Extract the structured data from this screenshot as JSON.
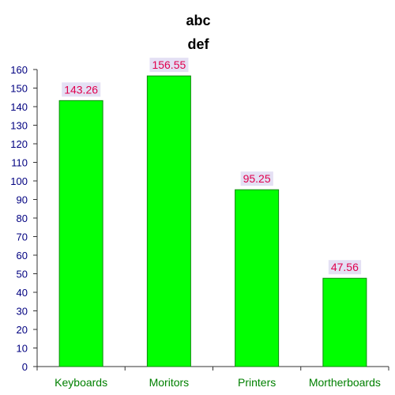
{
  "chart_data": {
    "type": "bar",
    "title": "abc",
    "subtitle": "def",
    "xlabel": "",
    "ylabel": "",
    "categories": [
      "Keyboards",
      "Moritors",
      "Printers",
      "Mortherboards"
    ],
    "values": [
      143.26,
      156.55,
      95.25,
      47.56
    ],
    "data_labels": [
      "143.26",
      "156.55",
      "95.25",
      "47.56"
    ],
    "ylim": [
      0,
      160
    ],
    "yticks": [
      "0",
      "10",
      "20",
      "30",
      "40",
      "50",
      "60",
      "70",
      "80",
      "90",
      "100",
      "110",
      "120",
      "130",
      "140",
      "150",
      "160"
    ],
    "grid": false,
    "legend": "none",
    "colors": {
      "bar_fill": "#00ff00",
      "bar_stroke": "#0a8a0a",
      "axis": "#333333",
      "tick_label": "#000080",
      "category_label": "#008000",
      "data_label_text": "#e0004d",
      "data_label_bg": "#e4e0f4",
      "title": "#000000"
    }
  }
}
